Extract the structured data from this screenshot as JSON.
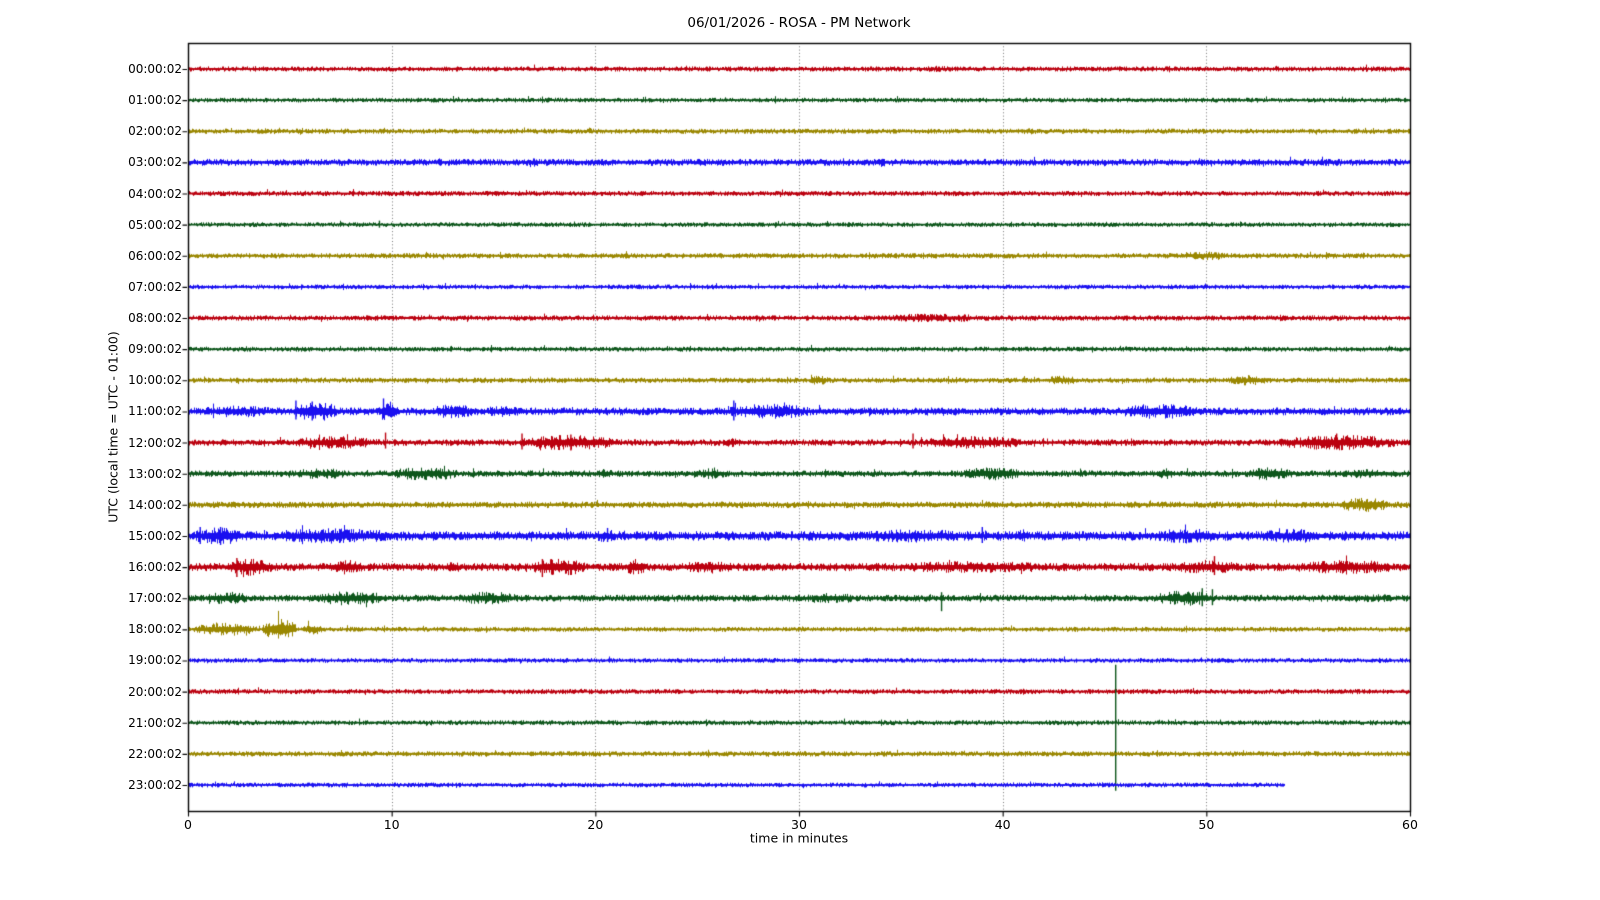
{
  "chart_data": {
    "type": "line",
    "subtype": "helicorder-dayplot",
    "title": "06/01/2026 - ROSA - PM Network",
    "date": "06/01/2026",
    "station": "ROSA",
    "network_label": "PM Network",
    "xlabel": "time in minutes",
    "ylabel": "UTC (local time = UTC - 01:00)",
    "xlim": [
      0,
      60
    ],
    "x_ticks": [
      "0",
      "10",
      "20",
      "30",
      "40",
      "50",
      "60"
    ],
    "x_tick_values": [
      0,
      10,
      20,
      30,
      40,
      50,
      60
    ],
    "grid": {
      "vertical_dotted_at_minutes": [
        10,
        20,
        30,
        40,
        50
      ],
      "horizontal": false,
      "color": "#666666"
    },
    "legend": "none",
    "colors": {
      "red": "#BB000F",
      "green": "#0D561B",
      "olive": "#9A8700",
      "blue": "#1A10F0"
    },
    "color_cycle": [
      "red",
      "green",
      "olive",
      "blue"
    ],
    "amp_units": "pixel half-amplitude of trace band",
    "rows": [
      {
        "time": "00:00:02",
        "color": "red",
        "base": 2.4,
        "end_minute": 60,
        "bursts": [
          [
            36,
            37.5,
            3.2
          ]
        ],
        "spikes": []
      },
      {
        "time": "01:00:02",
        "color": "green",
        "base": 2.2,
        "end_minute": 60,
        "bursts": [],
        "spikes": []
      },
      {
        "time": "02:00:02",
        "color": "olive",
        "base": 2.4,
        "end_minute": 60,
        "bursts": [
          [
            40.8,
            41.8,
            3.4
          ]
        ],
        "spikes": []
      },
      {
        "time": "03:00:02",
        "color": "blue",
        "base": 3.2,
        "end_minute": 60,
        "bursts": [
          [
            16.6,
            17.4,
            4.5
          ],
          [
            33.6,
            34.4,
            4.5
          ]
        ],
        "spikes": []
      },
      {
        "time": "04:00:02",
        "color": "red",
        "base": 2.4,
        "end_minute": 60,
        "bursts": [],
        "spikes": []
      },
      {
        "time": "05:00:02",
        "color": "green",
        "base": 2.2,
        "end_minute": 60,
        "bursts": [],
        "spikes": [
          [
            9.4,
            4,
            3
          ]
        ]
      },
      {
        "time": "06:00:02",
        "color": "olive",
        "base": 2.5,
        "end_minute": 60,
        "bursts": [
          [
            48.5,
            51.5,
            4.2
          ]
        ],
        "spikes": []
      },
      {
        "time": "07:00:02",
        "color": "blue",
        "base": 2.2,
        "end_minute": 60,
        "bursts": [],
        "spikes": []
      },
      {
        "time": "08:00:02",
        "color": "red",
        "base": 2.5,
        "end_minute": 60,
        "bursts": [
          [
            33,
            40,
            4.0
          ]
        ],
        "spikes": []
      },
      {
        "time": "09:00:02",
        "color": "green",
        "base": 2.3,
        "end_minute": 60,
        "bursts": [],
        "spikes": []
      },
      {
        "time": "10:00:02",
        "color": "olive",
        "base": 2.5,
        "end_minute": 60,
        "bursts": [
          [
            30.4,
            31.6,
            4.5
          ],
          [
            41.8,
            44,
            4.2
          ],
          [
            50.8,
            53.2,
            4.8
          ]
        ],
        "spikes": []
      },
      {
        "time": "11:00:02",
        "color": "blue",
        "base": 3.6,
        "end_minute": 60,
        "bursts": [
          [
            0,
            4.8,
            5.5
          ],
          [
            4.9,
            7.6,
            9
          ],
          [
            9.3,
            10.4,
            10
          ],
          [
            11.8,
            14.2,
            7
          ],
          [
            14.2,
            17,
            5.5
          ],
          [
            26,
            31,
            7
          ],
          [
            35.5,
            38.5,
            4.5
          ],
          [
            45.3,
            50,
            7
          ]
        ],
        "spikes": [
          [
            5.3,
            11,
            8
          ],
          [
            6.1,
            10,
            9
          ],
          [
            9.6,
            13,
            7
          ],
          [
            26.8,
            11,
            9
          ]
        ]
      },
      {
        "time": "12:00:02",
        "color": "red",
        "base": 3.0,
        "end_minute": 60,
        "bursts": [
          [
            4.7,
            9.8,
            6
          ],
          [
            15.8,
            21.6,
            7
          ],
          [
            26.3,
            27,
            5
          ],
          [
            35.3,
            41.6,
            6
          ],
          [
            53,
            60,
            7
          ]
        ],
        "spikes": [
          [
            9.7,
            10,
            6
          ],
          [
            16.4,
            9,
            7
          ],
          [
            18.8,
            8,
            8
          ],
          [
            35.6,
            9,
            6
          ],
          [
            56.4,
            9,
            7
          ]
        ]
      },
      {
        "time": "13:00:02",
        "color": "green",
        "base": 3.0,
        "end_minute": 60,
        "bursts": [
          [
            4.8,
            8.2,
            5
          ],
          [
            9.7,
            13.6,
            6.5
          ],
          [
            19.8,
            21,
            4.5
          ],
          [
            24.5,
            26.8,
            5
          ],
          [
            37.6,
            41.4,
            6
          ],
          [
            47.3,
            48.6,
            5
          ],
          [
            51.7,
            54.5,
            6
          ],
          [
            56,
            60,
            4.5
          ]
        ],
        "spikes": []
      },
      {
        "time": "14:00:02",
        "color": "olive",
        "base": 3.0,
        "end_minute": 60,
        "bursts": [
          [
            56.2,
            59.3,
            6.5
          ]
        ],
        "spikes": []
      },
      {
        "time": "15:00:02",
        "color": "blue",
        "base": 4.4,
        "end_minute": 60,
        "bursts": [
          [
            0,
            3,
            8
          ],
          [
            3,
            11.2,
            7
          ],
          [
            19.8,
            21.2,
            6
          ],
          [
            31.6,
            39.8,
            6
          ],
          [
            40.6,
            41.4,
            6
          ],
          [
            47,
            51.2,
            7
          ],
          [
            52.2,
            56.4,
            6.5
          ]
        ],
        "spikes": [
          [
            0.6,
            9,
            8
          ],
          [
            1.6,
            9,
            9
          ],
          [
            20.6,
            8,
            6
          ],
          [
            39,
            9,
            7
          ]
        ]
      },
      {
        "time": "16:00:02",
        "color": "red",
        "base": 3.8,
        "end_minute": 60,
        "bursts": [
          [
            1.6,
            4.4,
            8
          ],
          [
            6.6,
            8.8,
            7
          ],
          [
            12.6,
            13.4,
            6
          ],
          [
            16.6,
            19.8,
            8
          ],
          [
            21.4,
            22.6,
            8
          ],
          [
            23.8,
            27.2,
            6
          ],
          [
            33.4,
            44,
            5.5
          ],
          [
            47.8,
            52.2,
            6
          ],
          [
            54,
            60,
            6.5
          ]
        ],
        "spikes": [
          [
            2.4,
            9,
            10
          ],
          [
            17.4,
            8,
            10
          ],
          [
            50.4,
            11,
            8
          ]
        ]
      },
      {
        "time": "17:00:02",
        "color": "green",
        "base": 3.2,
        "end_minute": 60,
        "bursts": [
          [
            0.6,
            3.2,
            6
          ],
          [
            5.8,
            10.2,
            6.5
          ],
          [
            12.8,
            16.6,
            6
          ],
          [
            29.8,
            33.2,
            5
          ],
          [
            47.2,
            50.6,
            7
          ],
          [
            55.8,
            60,
            4
          ]
        ],
        "spikes": [
          [
            37,
            6,
            13
          ],
          [
            49.8,
            10,
            8
          ],
          [
            50.3,
            9,
            7
          ]
        ]
      },
      {
        "time": "18:00:02",
        "color": "olive",
        "base": 2.3,
        "end_minute": 60,
        "bursts": [
          [
            0,
            3.6,
            6
          ],
          [
            3.6,
            5.4,
            10
          ],
          [
            5.4,
            6.8,
            5
          ]
        ],
        "spikes": []
      },
      {
        "time": "19:00:02",
        "color": "blue",
        "base": 2.2,
        "end_minute": 60,
        "bursts": [],
        "spikes": []
      },
      {
        "time": "20:00:02",
        "color": "red",
        "base": 2.4,
        "end_minute": 60,
        "bursts": [],
        "spikes": []
      },
      {
        "time": "21:00:02",
        "color": "green",
        "base": 2.3,
        "end_minute": 60,
        "bursts": [],
        "spikes": [
          [
            45.55,
            58,
            68
          ]
        ]
      },
      {
        "time": "22:00:02",
        "color": "olive",
        "base": 2.5,
        "end_minute": 60,
        "bursts": [],
        "spikes": []
      },
      {
        "time": "23:00:02",
        "color": "blue",
        "base": 2.2,
        "end_minute": 53.8,
        "bursts": [],
        "spikes": []
      }
    ]
  }
}
